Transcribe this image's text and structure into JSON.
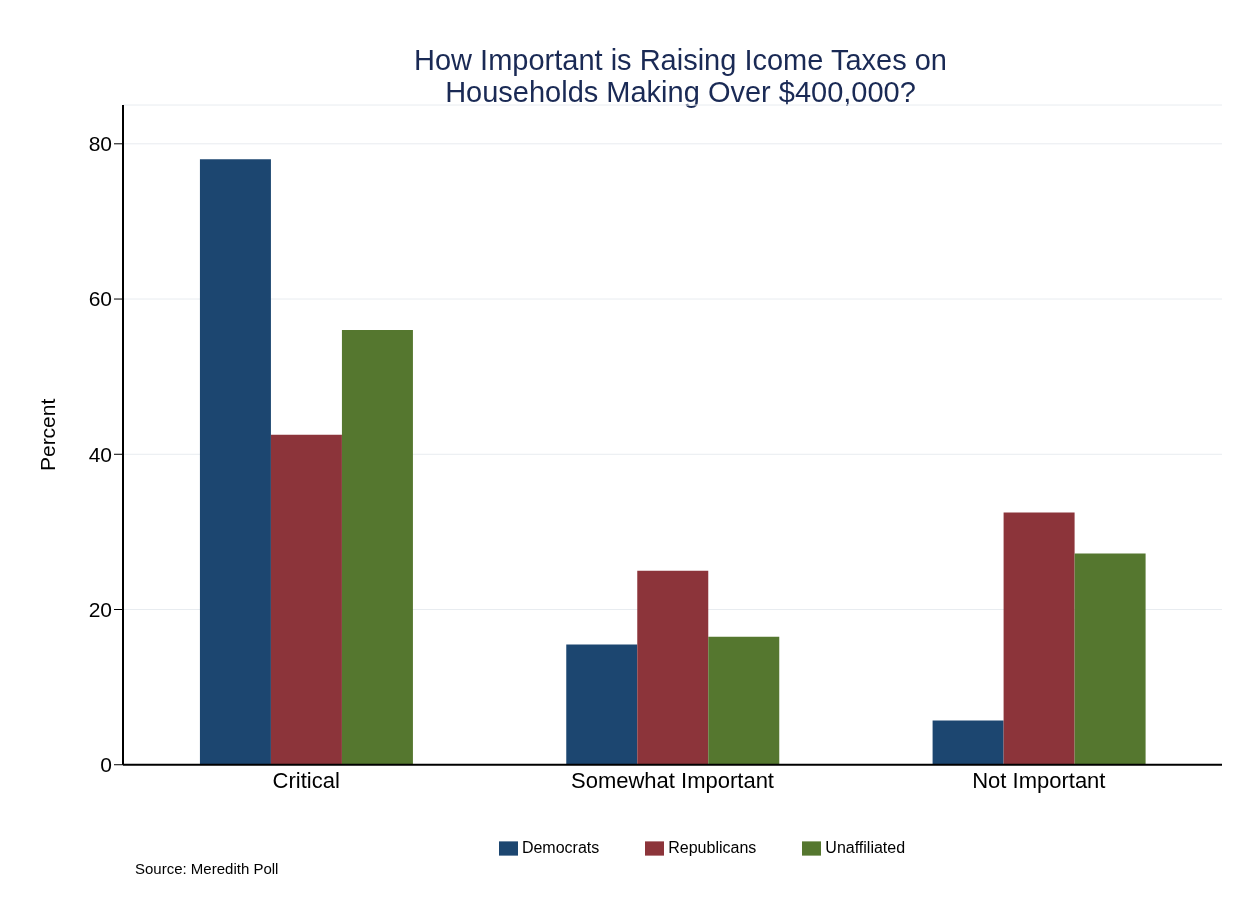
{
  "chart_data": {
    "type": "bar",
    "title": "How Important is Raising Icome Taxes on\nHouseholds Making Over $400,000?",
    "ylabel": "Percent",
    "categories": [
      "Critical",
      "Somewhat Important",
      "Not Important"
    ],
    "series": [
      {
        "name": "Democrats",
        "color": "#1c4670",
        "values": [
          78,
          15.5,
          5.7
        ]
      },
      {
        "name": "Republicans",
        "color": "#8c343a",
        "values": [
          42.5,
          25,
          32.5
        ]
      },
      {
        "name": "Unaffiliated",
        "color": "#55772f",
        "values": [
          56,
          16.5,
          27.2
        ]
      }
    ],
    "ylim": [
      0,
      85
    ],
    "yticks": [
      0,
      20,
      40,
      60,
      80
    ],
    "grid": "y",
    "legend": "bottom",
    "annotations": [
      "Source: Meredith Poll"
    ]
  }
}
